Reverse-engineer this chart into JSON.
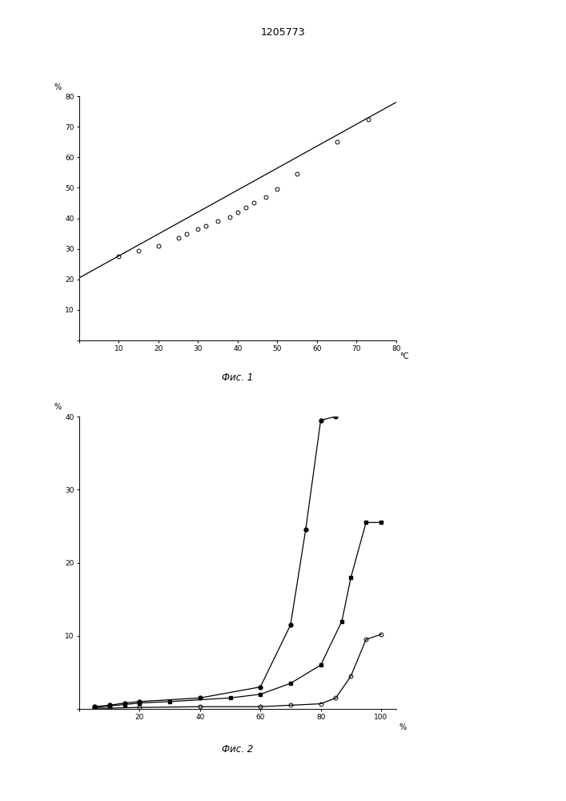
{
  "title": "1205773",
  "fig1": {
    "xlabel": "°C",
    "ylabel": "%",
    "xlim": [
      0,
      80
    ],
    "ylim": [
      0,
      80
    ],
    "xticks": [
      0,
      10,
      20,
      30,
      40,
      50,
      60,
      70,
      80
    ],
    "yticks": [
      0,
      10,
      20,
      30,
      40,
      50,
      60,
      70,
      80
    ],
    "caption": "Фис. 1",
    "data_x": [
      10,
      15,
      20,
      25,
      27,
      30,
      32,
      35,
      38,
      40,
      42,
      44,
      47,
      50,
      55,
      65,
      73
    ],
    "data_y": [
      27.5,
      29.5,
      31.0,
      33.5,
      35.0,
      36.5,
      37.5,
      39.0,
      40.5,
      42.0,
      43.5,
      45.0,
      47.0,
      49.5,
      54.5,
      65.0,
      72.5
    ],
    "line_x": [
      0,
      80
    ],
    "line_y": [
      20.5,
      78.0
    ]
  },
  "fig2": {
    "xlabel": "%",
    "ylabel": "%",
    "xlim": [
      0,
      105
    ],
    "ylim": [
      0,
      40
    ],
    "xticks": [
      0,
      20,
      40,
      60,
      80,
      100
    ],
    "yticks": [
      0,
      10,
      20,
      30,
      40
    ],
    "caption": "Фис. 2",
    "series1_x": [
      5,
      10,
      15,
      20,
      40,
      60,
      70,
      75,
      80,
      85
    ],
    "series1_y": [
      0.3,
      0.5,
      0.8,
      1.0,
      1.5,
      3.0,
      11.5,
      24.5,
      39.5,
      40.0
    ],
    "series2_x": [
      5,
      10,
      15,
      20,
      30,
      50,
      60,
      70,
      80,
      87,
      90,
      95,
      100
    ],
    "series2_y": [
      0.2,
      0.4,
      0.6,
      0.8,
      1.0,
      1.5,
      2.0,
      3.5,
      6.0,
      12.0,
      18.0,
      25.5,
      25.5
    ],
    "series3_x": [
      5,
      10,
      20,
      40,
      60,
      70,
      80,
      85,
      90,
      95,
      100
    ],
    "series3_y": [
      0.1,
      0.1,
      0.2,
      0.3,
      0.3,
      0.5,
      0.7,
      1.5,
      4.5,
      9.5,
      10.2
    ]
  },
  "background_color": "#ffffff",
  "line_color": "#000000"
}
